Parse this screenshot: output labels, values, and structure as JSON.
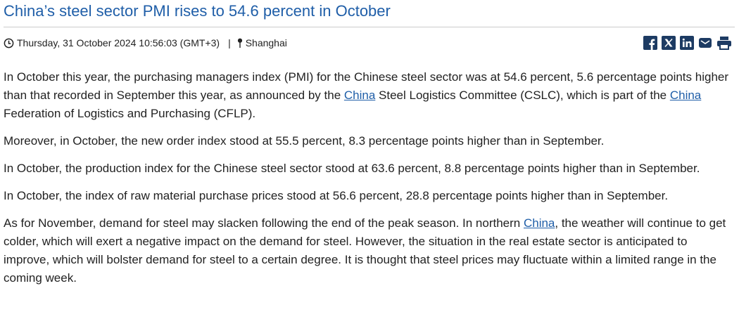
{
  "header": {
    "title": "China’s steel sector PMI rises to 54.6 percent in October",
    "date": "Thursday, 31 October 2024 10:56:03 (GMT+3)",
    "separator": "|",
    "location": "Shanghai"
  },
  "paragraphs": [
    [
      {
        "text": "In October this year, the purchasing managers index (PMI) for the Chinese steel sector was at 54.6 percent, 5.6 percentage points higher than that recorded in September this year, as announced by the "
      },
      {
        "link": "China"
      },
      {
        "text": " Steel Logistics Committee (CSLC), which is part of the "
      },
      {
        "link": "China"
      },
      {
        "text": " Federation of Logistics and Purchasing (CFLP)."
      }
    ],
    [
      {
        "text": "Moreover, in October, the new order index stood at 55.5 percent, 8.3 percentage points higher than in September."
      }
    ],
    [
      {
        "text": "In October, the production index for the Chinese steel sector stood at 63.6 percent, 8.8 percentage points higher than in September."
      }
    ],
    [
      {
        "text": "In October, the index of raw material purchase prices stood at 56.6 percent, 28.8 percentage points higher than in September."
      }
    ],
    [
      {
        "text": "As for November, demand for steel may slacken following the end of the peak season. In northern "
      },
      {
        "link": "China"
      },
      {
        "text": ", the weather will continue to get colder, which will exert a negative impact on the demand for steel. However, the situation in the real estate sector is anticipated to improve, which will bolster demand for steel to a certain degree. It is thought that steel prices may fluctuate within a limited range in the coming week."
      }
    ]
  ]
}
